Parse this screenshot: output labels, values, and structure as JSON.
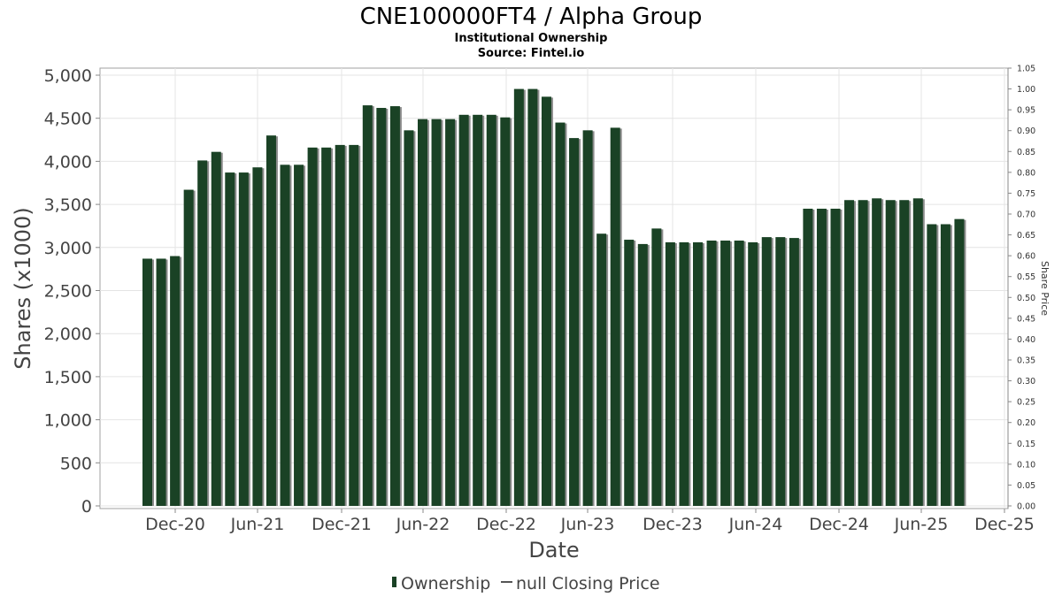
{
  "title": "CNE100000FT4 / Alpha Group",
  "subtitle_1": "Institutional Ownership",
  "subtitle_2": "Source: Fintel.io",
  "chart_data": {
    "type": "bar",
    "xlabel": "Date",
    "ylabel": "Shares (x1000)",
    "y2label": "Share Price",
    "ylim": [
      0,
      5000
    ],
    "y2lim": [
      0,
      1.05
    ],
    "yticks": [
      "0",
      "500",
      "1,000",
      "1,500",
      "2,000",
      "2,500",
      "3,000",
      "3,500",
      "4,000",
      "4,500",
      "5,000"
    ],
    "y2ticks": [
      "0.00",
      "0.05",
      "0.10",
      "0.15",
      "0.20",
      "0.25",
      "0.30",
      "0.35",
      "0.40",
      "0.45",
      "0.50",
      "0.55",
      "0.60",
      "0.65",
      "0.70",
      "0.75",
      "0.80",
      "0.85",
      "0.90",
      "0.95",
      "1.00",
      "1.05"
    ],
    "xticks": [
      "Dec-20",
      "Jun-21",
      "Dec-21",
      "Jun-22",
      "Dec-22",
      "Jun-23",
      "Dec-23",
      "Jun-24",
      "Dec-24",
      "Jun-25",
      "Dec-25"
    ],
    "grid": true,
    "legend_position": "bottom",
    "bar_color": "#1a4225",
    "series": [
      {
        "name": "Ownership",
        "values": [
          2870,
          2870,
          2900,
          3670,
          4010,
          4110,
          3870,
          3870,
          3930,
          4300,
          3960,
          3960,
          4160,
          4160,
          4190,
          4190,
          4650,
          4620,
          4640,
          4360,
          4490,
          4490,
          4490,
          4540,
          4540,
          4540,
          4510,
          4840,
          4840,
          4750,
          4450,
          4270,
          4360,
          3160,
          4390,
          3090,
          3040,
          3220,
          3060,
          3060,
          3060,
          3080,
          3080,
          3080,
          3060,
          3120,
          3120,
          3110,
          3450,
          3450,
          3450,
          3550,
          3550,
          3570,
          3550,
          3550,
          3570,
          3270,
          3270,
          3330
        ]
      },
      {
        "name": "null Closing Price",
        "values": []
      }
    ]
  }
}
